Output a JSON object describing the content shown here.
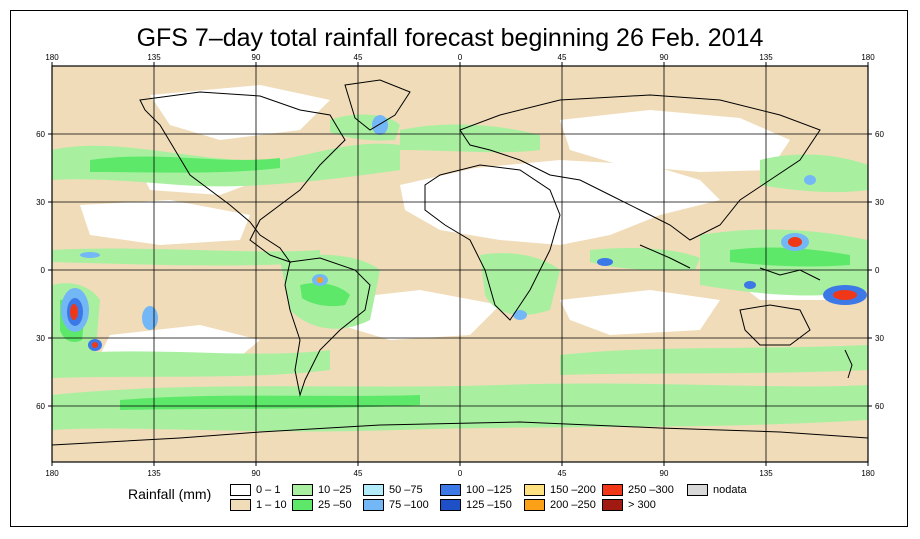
{
  "title": "GFS 7–day total rainfall forecast beginning 26 Feb. 2014",
  "lon_ticks": [
    "180",
    "135",
    "90",
    "45",
    "0",
    "45",
    "90",
    "135",
    "180"
  ],
  "lat_ticks": [
    "60",
    "30",
    "0",
    "30",
    "60"
  ],
  "legend": {
    "label": "Rainfall (mm)",
    "items": [
      {
        "range": "0 – 1",
        "color": "#ffffff"
      },
      {
        "range": "1 – 10",
        "color": "#f0dcb9"
      },
      {
        "range": "10 –25",
        "color": "#a8f0a0"
      },
      {
        "range": "25 –50",
        "color": "#5ee86a"
      },
      {
        "range": "50 –75",
        "color": "#b2ecfb"
      },
      {
        "range": "75 –100",
        "color": "#74b7f6"
      },
      {
        "range": "100 –125",
        "color": "#3c78e6"
      },
      {
        "range": "125 –150",
        "color": "#1e50c8"
      },
      {
        "range": "150 –200",
        "color": "#fde080"
      },
      {
        "range": "200 –250",
        "color": "#fca018"
      },
      {
        "range": "250 –300",
        "color": "#f03818"
      },
      {
        "range": "> 300",
        "color": "#a01a12"
      },
      {
        "range": "nodata",
        "color": "#d8d8d8"
      }
    ]
  }
}
